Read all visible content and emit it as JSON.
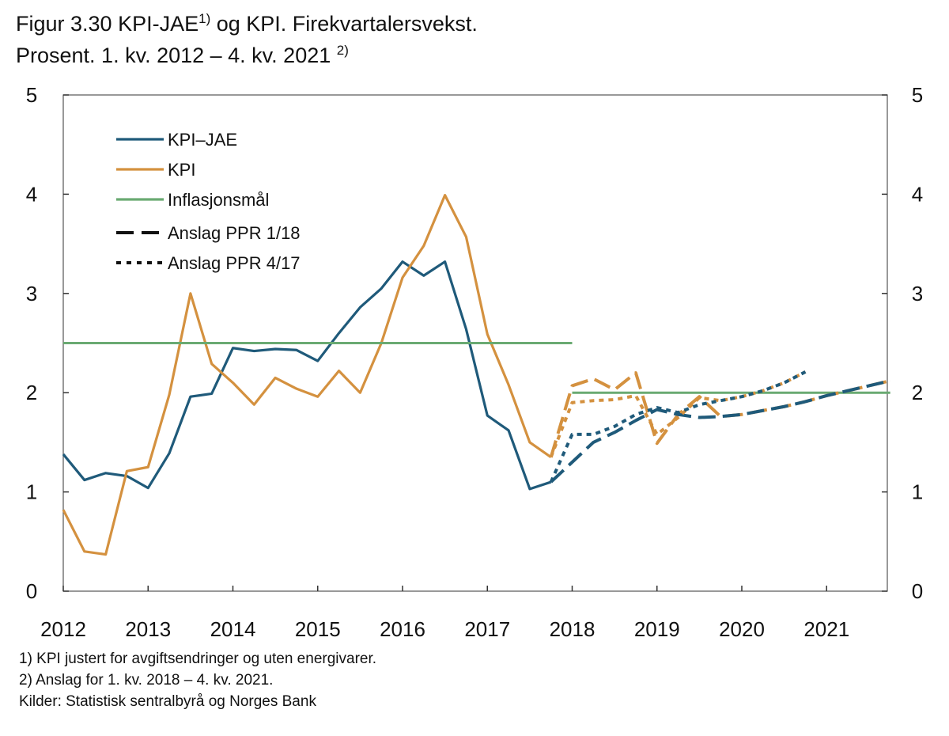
{
  "title": {
    "line1": "Figur 3.30 KPI-JAE",
    "sup1": "1)",
    "line1b": " og KPI. Firekvartalersvekst.",
    "line2": "Prosent. 1. kv. 2012 – 4. kv. 2021",
    "sup2": "2)"
  },
  "footnotes": [
    "1) KPI justert for avgiftsendringer og uten energivarer.",
    "2) Anslag for 1. kv. 2018 – 4. kv. 2021.",
    "Kilder: Statistisk sentralbyrå og Norges Bank"
  ],
  "chart_data": {
    "type": "line",
    "xlabel": "",
    "ylabel": "",
    "ylim": [
      0,
      5
    ],
    "yticks": [
      0,
      1,
      2,
      3,
      4,
      5
    ],
    "xticks": [
      "2012",
      "2013",
      "2014",
      "2015",
      "2016",
      "2017",
      "2018",
      "2019",
      "2020",
      "2021"
    ],
    "xrange": [
      "2012Q1",
      "2021Q4"
    ],
    "grid": false,
    "legend_position": "top-left",
    "colors": {
      "kpi_jae": "#1f5a7a",
      "kpi": "#d4913f",
      "target": "#6aaa72"
    },
    "series": [
      {
        "name": "KPI–JAE",
        "key": "kpi_jae",
        "style": "solid",
        "start": "2012Q1",
        "values": [
          1.38,
          1.12,
          1.19,
          1.16,
          1.04,
          1.39,
          1.96,
          1.99,
          2.45,
          2.42,
          2.44,
          2.43,
          2.32,
          2.6,
          2.86,
          3.05,
          3.32,
          3.18,
          3.32,
          2.64,
          1.77,
          1.62,
          1.03,
          1.1
        ]
      },
      {
        "name": "KPI",
        "key": "kpi",
        "style": "solid",
        "start": "2012Q1",
        "values": [
          0.82,
          0.4,
          0.37,
          1.21,
          1.25,
          1.98,
          3.0,
          2.29,
          2.1,
          1.88,
          2.15,
          2.04,
          1.96,
          2.22,
          2.0,
          2.5,
          3.16,
          3.48,
          3.99,
          3.57,
          2.59,
          2.08,
          1.5,
          1.35
        ]
      },
      {
        "name": "Inflasjonsmål",
        "key": "target",
        "style": "solid",
        "segments": [
          {
            "from": "2012Q1",
            "to": "2018Q1",
            "value": 2.5
          },
          {
            "from": "2018Q1",
            "to": "2021Q4",
            "value": 2.0
          }
        ]
      },
      {
        "name": "Anslag PPR 1/18",
        "key": "kpi",
        "style": "dashed",
        "start": "2017Q4",
        "values": [
          1.35,
          2.07,
          2.14,
          2.03,
          2.2,
          1.49,
          1.78,
          1.96,
          1.76,
          1.78,
          1.82,
          1.86,
          1.91,
          1.97,
          2.02,
          2.07,
          2.12
        ]
      },
      {
        "name": "Anslag PPR 1/18",
        "key": "kpi_jae",
        "style": "dashed",
        "start": "2017Q4",
        "values": [
          1.1,
          1.3,
          1.5,
          1.6,
          1.72,
          1.83,
          1.78,
          1.75,
          1.76,
          1.78,
          1.82,
          1.86,
          1.91,
          1.97,
          2.02,
          2.07,
          2.12
        ]
      },
      {
        "name": "Anslag PPR 4/17",
        "key": "kpi",
        "style": "dotted",
        "start": "2017Q4",
        "values": [
          1.35,
          1.9,
          1.92,
          1.93,
          1.97,
          1.58,
          1.75,
          1.95,
          1.92,
          1.96,
          2.02,
          2.1,
          2.21
        ]
      },
      {
        "name": "Anslag PPR 4/17",
        "key": "kpi_jae",
        "style": "dotted",
        "start": "2017Q4",
        "values": [
          1.1,
          1.58,
          1.58,
          1.66,
          1.78,
          1.85,
          1.8,
          1.88,
          1.92,
          1.96,
          2.02,
          2.1,
          2.21
        ]
      }
    ],
    "legend": [
      {
        "label": "KPI–JAE",
        "key": "kpi_jae",
        "style": "solid"
      },
      {
        "label": "KPI",
        "key": "kpi",
        "style": "solid"
      },
      {
        "label": "Inflasjonsmål",
        "key": "target",
        "style": "solid"
      },
      {
        "label": "Anslag PPR 1/18",
        "key": "black",
        "style": "dashed"
      },
      {
        "label": "Anslag PPR 4/17",
        "key": "black",
        "style": "dotted"
      }
    ]
  }
}
